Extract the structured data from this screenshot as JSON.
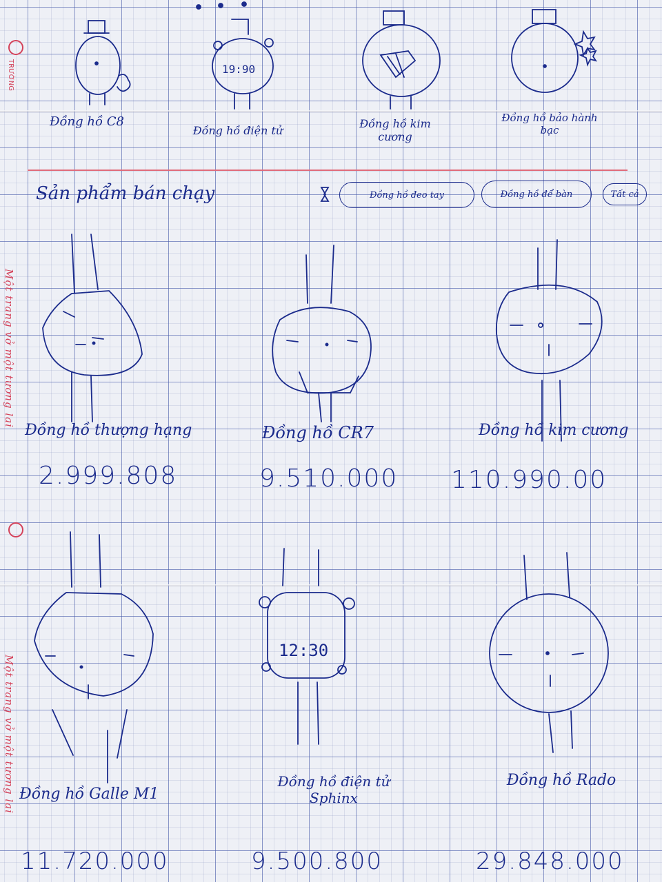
{
  "margin": {
    "slogan": "Một trang vở một tương lai",
    "brand": "TRƯỜNG"
  },
  "top_row": [
    {
      "label": "Đồng hồ C8"
    },
    {
      "label": "Đồng hồ điện tử"
    },
    {
      "label": "Đồng hồ kim cương"
    },
    {
      "label": "Đồng hồ bảo hành bạc"
    }
  ],
  "top_row_clock_text": "19:90",
  "section": {
    "title": "Sản phẩm bán chạy",
    "filter_icon": "hourglass-filter-icon",
    "filters": [
      "Đồng hồ đeo tay",
      "Đồng hồ để bàn",
      "Tất cả"
    ]
  },
  "products": [
    {
      "name": "Đồng hồ thượng hạng",
      "price": "2.999.808"
    },
    {
      "name": "Đồng hồ CR7",
      "price": "9.510.000"
    },
    {
      "name": "Đồng hồ kim cương",
      "price": "110.990.00"
    },
    {
      "name": "Đồng hồ Galle M1",
      "price": "11.720.000"
    },
    {
      "name": "Đồng hồ điện tử Sphinx",
      "price": "9.500.800"
    },
    {
      "name": "Đồng hồ Rado",
      "price": "29.848.000"
    }
  ],
  "product_clock_text": "12:30"
}
